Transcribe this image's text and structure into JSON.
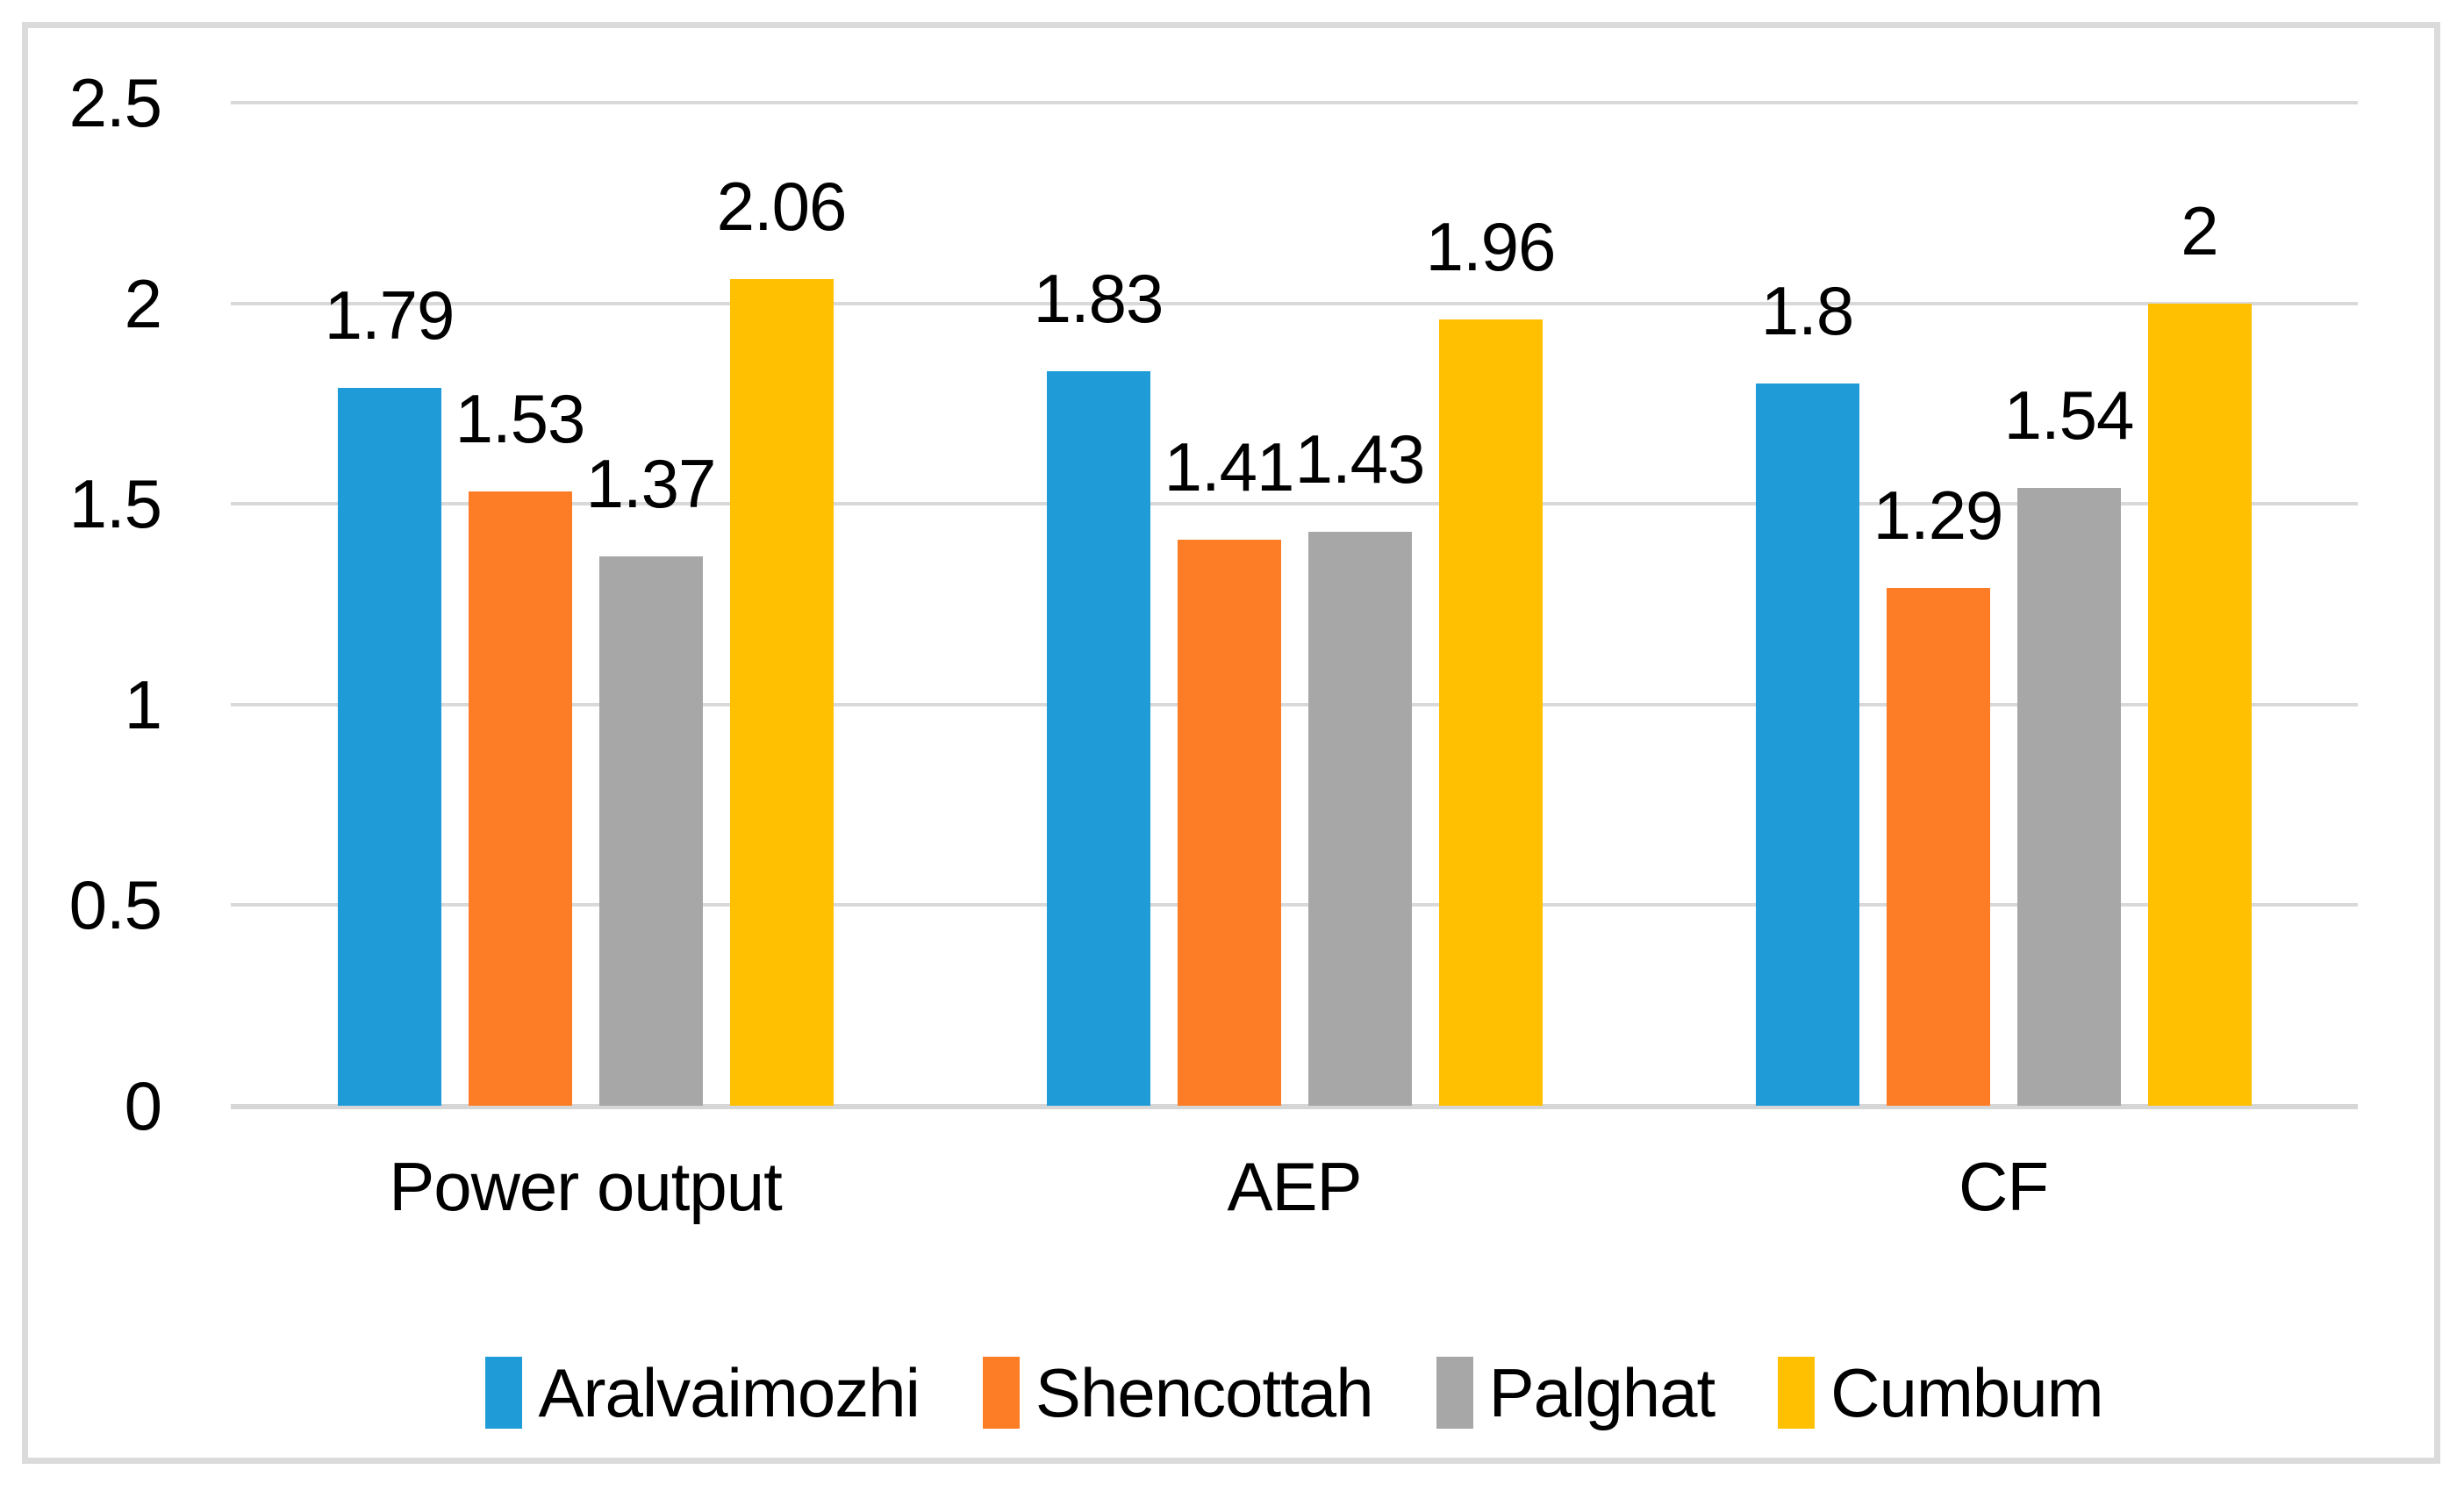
{
  "chart_data": {
    "type": "bar",
    "title": "",
    "xlabel": "",
    "ylabel": "",
    "categories": [
      "Power output",
      "AEP",
      "CF"
    ],
    "series": [
      {
        "name": "Aralvaimozhi",
        "color": "#1f9cd8",
        "values": [
          1.79,
          1.83,
          1.8
        ],
        "labels": [
          "1.79",
          "1.83",
          "1.8"
        ]
      },
      {
        "name": "Shencottah",
        "color": "#fc7d26",
        "values": [
          1.53,
          1.41,
          1.29
        ],
        "labels": [
          "1.53",
          "1.41",
          "1.29"
        ]
      },
      {
        "name": "Palghat",
        "color": "#a7a7a7",
        "values": [
          1.37,
          1.43,
          1.54
        ],
        "labels": [
          "1.37",
          "1.43",
          "1.54"
        ]
      },
      {
        "name": "Cumbum",
        "color": "#ffc001",
        "values": [
          2.06,
          1.96,
          2
        ],
        "labels": [
          "2.06",
          "1.96",
          "2"
        ]
      }
    ],
    "ylim": [
      0,
      2.5
    ],
    "y_ticks": [
      "0",
      "0.5",
      "1",
      "1.5",
      "2",
      "2.5"
    ],
    "y_tick_values": [
      0,
      0.5,
      1,
      1.5,
      2,
      2.5
    ],
    "grid": true,
    "legend_position": "bottom"
  },
  "colors": {
    "background": "#ffffff",
    "frame_border": "#dbdbdb",
    "gridline": "#d9d9d9",
    "axis_line": "#d6d6d6",
    "text": "#000000"
  }
}
